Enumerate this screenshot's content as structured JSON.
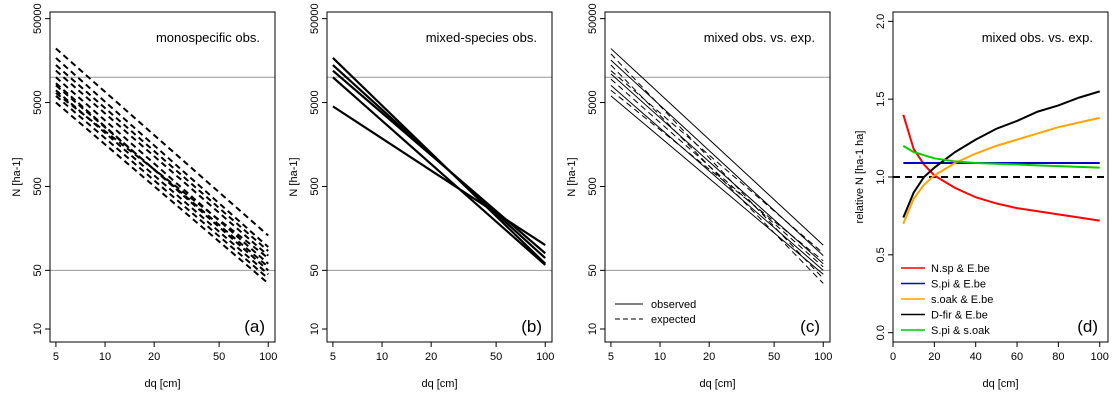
{
  "colors": {
    "nsp_ebe": "#ff0000",
    "spi_ebe": "#0000cc",
    "soak_ebe": "#ffa500",
    "dfir_ebe": "#000000",
    "spi_soak": "#00cc00",
    "refline": "#999999"
  },
  "chart_data": [
    {
      "id": "a",
      "type": "line",
      "title": "monospecific obs.",
      "panel_label": "(a)",
      "xlabel": "dq [cm]",
      "ylabel": "N [ha-1]",
      "xscale": "log",
      "yscale": "log",
      "xlim": [
        4.6,
        110
      ],
      "ylim": [
        7,
        60000
      ],
      "xticks": [
        5,
        10,
        20,
        50,
        100
      ],
      "xtick_labels": [
        "5",
        "10",
        "20",
        "50",
        "100"
      ],
      "yticks": [
        10,
        50,
        500,
        5000,
        50000
      ],
      "ytick_labels": [
        "10",
        "50",
        "500",
        "5000",
        "50000"
      ],
      "hlines": [
        50,
        10000
      ],
      "series": [
        {
          "style": "dashed",
          "x": [
            5,
            100
          ],
          "y": [
            22000,
            130
          ]
        },
        {
          "style": "dashed",
          "x": [
            5,
            100
          ],
          "y": [
            17000,
            95
          ]
        },
        {
          "style": "dashed",
          "x": [
            5,
            100
          ],
          "y": [
            14000,
            85
          ]
        },
        {
          "style": "dashed",
          "x": [
            5,
            100
          ],
          "y": [
            12000,
            75
          ]
        },
        {
          "style": "dashed",
          "x": [
            5,
            100
          ],
          "y": [
            10000,
            60
          ]
        },
        {
          "style": "dashed",
          "x": [
            5,
            100
          ],
          "y": [
            8500,
            50
          ]
        },
        {
          "style": "dashed",
          "x": [
            5,
            100
          ],
          "y": [
            7000,
            45
          ]
        },
        {
          "style": "dashed",
          "x": [
            5,
            100
          ],
          "y": [
            6000,
            40
          ]
        },
        {
          "style": "dashed",
          "x": [
            5,
            100
          ],
          "y": [
            5000,
            35
          ]
        },
        {
          "style": "dashed",
          "x": [
            5,
            100
          ],
          "y": [
            6500,
            70
          ]
        },
        {
          "style": "dashed",
          "x": [
            5,
            100
          ],
          "y": [
            8000,
            55
          ]
        }
      ]
    },
    {
      "id": "b",
      "type": "line",
      "title": "mixed-species obs.",
      "panel_label": "(b)",
      "xlabel": "dq [cm]",
      "ylabel": "N [ha-1]",
      "xscale": "log",
      "yscale": "log",
      "xlim": [
        4.6,
        110
      ],
      "ylim": [
        7,
        60000
      ],
      "xticks": [
        5,
        10,
        20,
        50,
        100
      ],
      "xtick_labels": [
        "5",
        "10",
        "20",
        "50",
        "100"
      ],
      "yticks": [
        10,
        50,
        500,
        5000,
        50000
      ],
      "ytick_labels": [
        "10",
        "50",
        "500",
        "5000",
        "50000"
      ],
      "hlines": [
        50,
        10000
      ],
      "series": [
        {
          "style": "solid",
          "x": [
            5,
            100
          ],
          "y": [
            17000,
            60
          ]
        },
        {
          "style": "solid",
          "x": [
            5,
            100
          ],
          "y": [
            14000,
            70
          ]
        },
        {
          "style": "solid",
          "x": [
            5,
            100
          ],
          "y": [
            12000,
            80
          ]
        },
        {
          "style": "solid",
          "x": [
            5,
            100
          ],
          "y": [
            10000,
            58
          ]
        },
        {
          "style": "solid",
          "x": [
            5,
            100
          ],
          "y": [
            4500,
            100
          ]
        }
      ]
    },
    {
      "id": "c",
      "type": "line",
      "title": "mixed obs. vs. exp.",
      "panel_label": "(c)",
      "xlabel": "dq [cm]",
      "ylabel": "N [ha-1]",
      "xscale": "log",
      "yscale": "log",
      "xlim": [
        4.6,
        110
      ],
      "ylim": [
        7,
        60000
      ],
      "xticks": [
        5,
        10,
        20,
        50,
        100
      ],
      "xtick_labels": [
        "5",
        "10",
        "20",
        "50",
        "100"
      ],
      "yticks": [
        10,
        50,
        500,
        5000,
        50000
      ],
      "ytick_labels": [
        "10",
        "50",
        "500",
        "5000",
        "50000"
      ],
      "hlines": [
        50,
        10000
      ],
      "legend": {
        "position": "bottom-left",
        "entries": [
          {
            "label": "observed",
            "style": "solid"
          },
          {
            "label": "expected",
            "style": "dashed"
          }
        ]
      },
      "series": [
        {
          "style": "solid",
          "x": [
            5,
            100
          ],
          "y": [
            22000,
            100
          ]
        },
        {
          "style": "solid",
          "x": [
            5,
            100
          ],
          "y": [
            16000,
            75
          ]
        },
        {
          "style": "solid",
          "x": [
            5,
            100
          ],
          "y": [
            11000,
            60
          ]
        },
        {
          "style": "solid",
          "x": [
            5,
            100
          ],
          "y": [
            8000,
            50
          ]
        },
        {
          "style": "solid",
          "x": [
            5,
            100
          ],
          "y": [
            6000,
            45
          ]
        },
        {
          "style": "dashed",
          "x": [
            5,
            100
          ],
          "y": [
            19000,
            40
          ]
        },
        {
          "style": "dashed",
          "x": [
            5,
            100
          ],
          "y": [
            14000,
            35
          ]
        },
        {
          "style": "dashed",
          "x": [
            5,
            100
          ],
          "y": [
            9500,
            55
          ]
        },
        {
          "style": "dashed",
          "x": [
            5,
            100
          ],
          "y": [
            7000,
            65
          ]
        },
        {
          "style": "dashed",
          "x": [
            5,
            100
          ],
          "y": [
            12000,
            80
          ]
        }
      ]
    },
    {
      "id": "d",
      "type": "line",
      "title": "mixed obs. vs. exp.",
      "panel_label": "(d)",
      "xlabel": "dq [cm]",
      "ylabel": "relative N [ha-1 ha]",
      "xscale": "linear",
      "yscale": "linear",
      "xlim": [
        0,
        104
      ],
      "ylim": [
        -0.06,
        2.06
      ],
      "xticks": [
        0,
        20,
        40,
        60,
        80,
        100
      ],
      "xtick_labels": [
        "0",
        "20",
        "40",
        "60",
        "80",
        "100"
      ],
      "yticks": [
        0,
        0.5,
        1,
        1.5,
        2
      ],
      "ytick_labels": [
        "0.0",
        "0.5",
        "1.0",
        "1.5",
        "2.0"
      ],
      "hline_dashed": 1.0,
      "legend": {
        "position": "bottom-left"
      },
      "series": [
        {
          "name": "N.sp & E.be",
          "color_key": "nsp_ebe",
          "x": [
            5,
            10,
            15,
            20,
            30,
            40,
            50,
            60,
            70,
            80,
            90,
            100
          ],
          "y": [
            1.4,
            1.18,
            1.08,
            1.01,
            0.93,
            0.87,
            0.83,
            0.8,
            0.78,
            0.76,
            0.74,
            0.72
          ]
        },
        {
          "name": "S.pi & E.be",
          "color_key": "spi_ebe",
          "x": [
            5,
            100
          ],
          "y": [
            1.09,
            1.09
          ]
        },
        {
          "name": "s.oak & E.be",
          "color_key": "soak_ebe",
          "x": [
            5,
            10,
            15,
            20,
            30,
            40,
            50,
            60,
            70,
            80,
            90,
            100
          ],
          "y": [
            0.7,
            0.86,
            0.95,
            1.01,
            1.09,
            1.15,
            1.2,
            1.24,
            1.28,
            1.32,
            1.35,
            1.38
          ]
        },
        {
          "name": "D-fir & E.be",
          "color_key": "dfir_ebe",
          "x": [
            5,
            10,
            15,
            20,
            30,
            40,
            50,
            60,
            70,
            80,
            90,
            100
          ],
          "y": [
            0.74,
            0.9,
            1.0,
            1.06,
            1.16,
            1.24,
            1.31,
            1.36,
            1.42,
            1.46,
            1.51,
            1.55
          ]
        },
        {
          "name": "S.pi & s.oak",
          "color_key": "spi_soak",
          "x": [
            5,
            10,
            15,
            20,
            30,
            40,
            50,
            60,
            70,
            80,
            90,
            100
          ],
          "y": [
            1.2,
            1.16,
            1.14,
            1.12,
            1.1,
            1.09,
            1.085,
            1.08,
            1.075,
            1.07,
            1.065,
            1.06
          ]
        }
      ]
    }
  ]
}
